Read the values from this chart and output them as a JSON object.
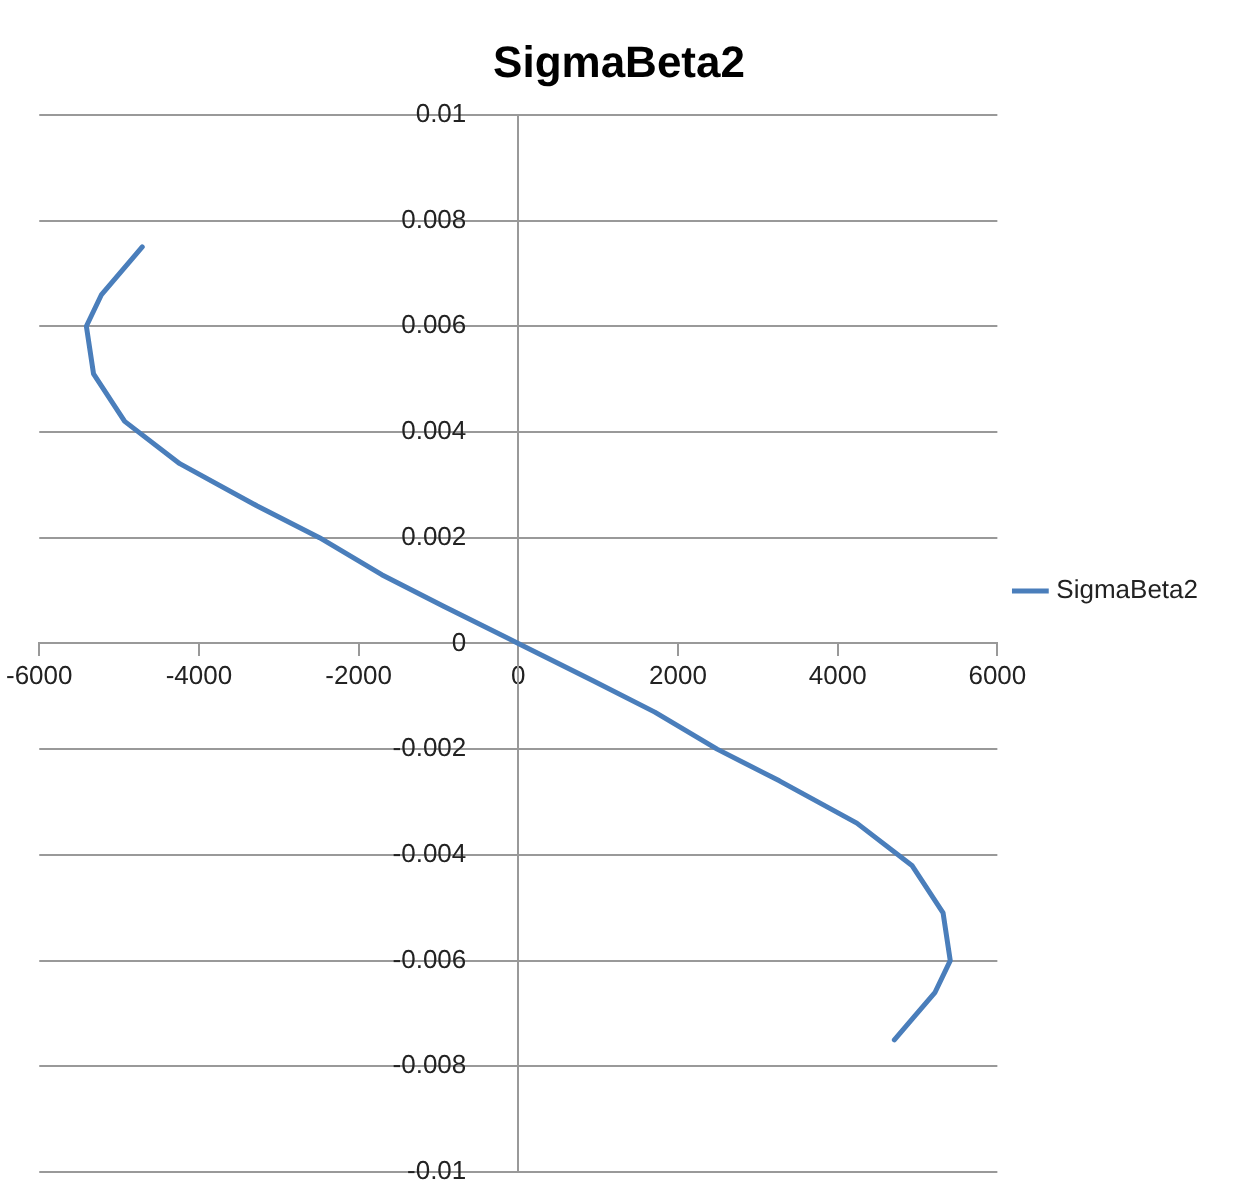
{
  "chart_data": {
    "type": "line",
    "title": "SigmaBeta2",
    "series": [
      {
        "name": "SigmaBeta2",
        "color": "#4a7ebb",
        "x": [
          -4710,
          -5220,
          -5410,
          -5320,
          -4930,
          -4240,
          -3270,
          -2490,
          -1710,
          -930,
          0,
          930,
          1710,
          2490,
          3270,
          4240,
          4930,
          5320,
          5410,
          5220,
          4710
        ],
        "values": [
          0.0075,
          0.0066,
          0.006,
          0.0051,
          0.0042,
          0.0034,
          0.0026,
          0.002,
          0.0013,
          0.0007,
          0,
          -0.0007,
          -0.0013,
          -0.002,
          -0.0026,
          -0.0034,
          -0.0042,
          -0.0051,
          -0.006,
          -0.0066,
          -0.0075
        ]
      }
    ],
    "xlim": [
      -6000,
      6000
    ],
    "xticks": [
      -6000,
      -4000,
      -2000,
      0,
      2000,
      4000,
      6000
    ],
    "ylim": [
      -0.01,
      0.01
    ],
    "yticks": [
      -0.01,
      -0.008,
      -0.006,
      -0.004,
      -0.002,
      0,
      0.002,
      0.004,
      0.006,
      0.008,
      0.01
    ],
    "grid": "y",
    "legend": "right",
    "marker": "none",
    "line_style": "solid"
  }
}
